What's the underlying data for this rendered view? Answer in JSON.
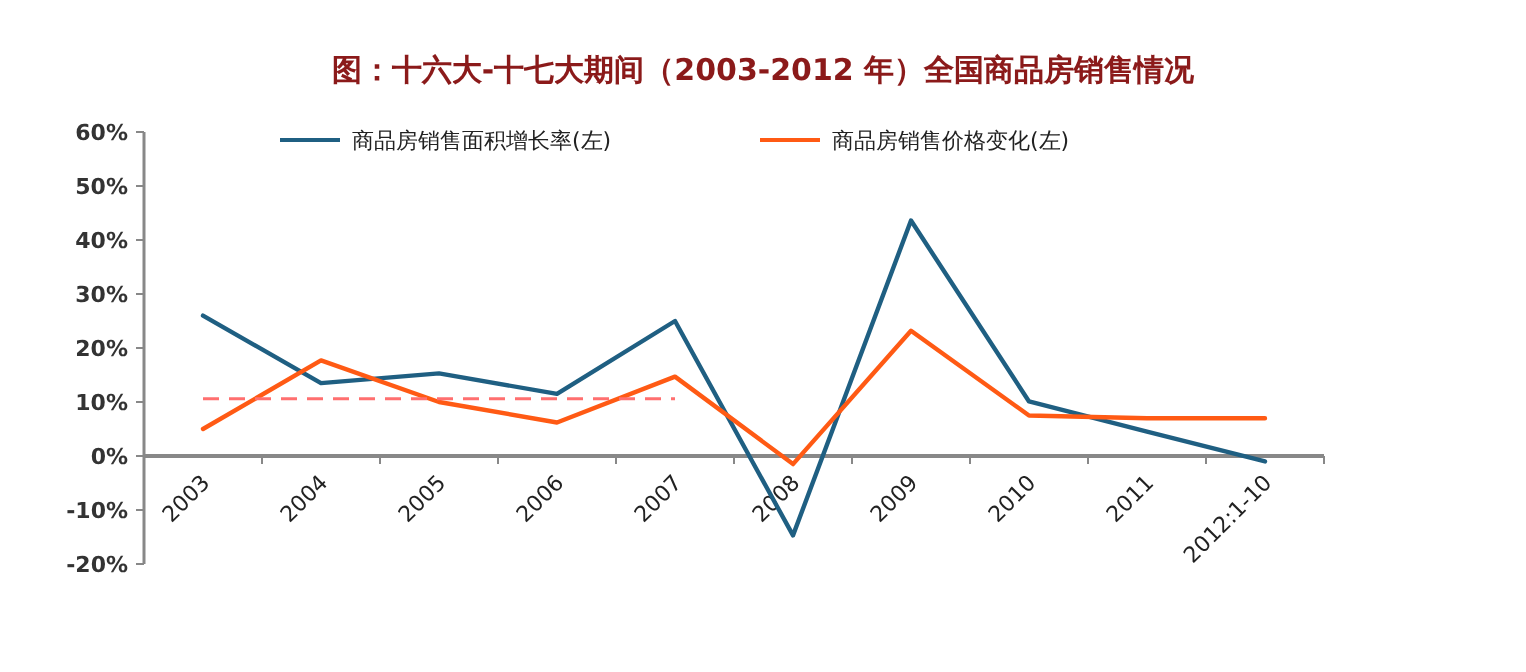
{
  "chart_data": {
    "type": "line",
    "title": "图：十六大-十七大期间（2003-2012 年）全国商品房销售情况",
    "categories": [
      "2003",
      "2004",
      "2005",
      "2006",
      "2007",
      "2008",
      "2009",
      "2010",
      "2011",
      "2012:1-10"
    ],
    "series": [
      {
        "name": "商品房销售面积增长率(左)",
        "color": "#1f5f82",
        "values": [
          26,
          13.5,
          15.3,
          11.5,
          25,
          -14.7,
          43.6,
          10.1,
          4.5,
          -1
        ]
      },
      {
        "name": "商品房销售价格变化(左)",
        "color": "#ff5a14",
        "values": [
          5,
          17.7,
          10,
          6.2,
          14.7,
          -1.5,
          23.2,
          7.5,
          7,
          7
        ]
      },
      {
        "color": "#ff6f6f",
        "line_style": "dashed",
        "values": [
          10.6,
          10.6,
          10.6,
          10.6,
          10.6,
          null,
          null,
          null,
          null,
          null
        ]
      }
    ],
    "ylim": [
      -20,
      60
    ],
    "yticks": [
      {
        "value": -20,
        "label": "-20%"
      },
      {
        "value": -10,
        "label": "-10%"
      },
      {
        "value": 0,
        "label": "0%"
      },
      {
        "value": 10,
        "label": "10%"
      },
      {
        "value": 20,
        "label": "20%"
      },
      {
        "value": 30,
        "label": "30%"
      },
      {
        "value": 40,
        "label": "40%"
      },
      {
        "value": 50,
        "label": "50%"
      },
      {
        "value": 60,
        "label": "60%"
      }
    ],
    "legend": "top",
    "grid": false,
    "marker": "none",
    "line_style": "solid"
  }
}
